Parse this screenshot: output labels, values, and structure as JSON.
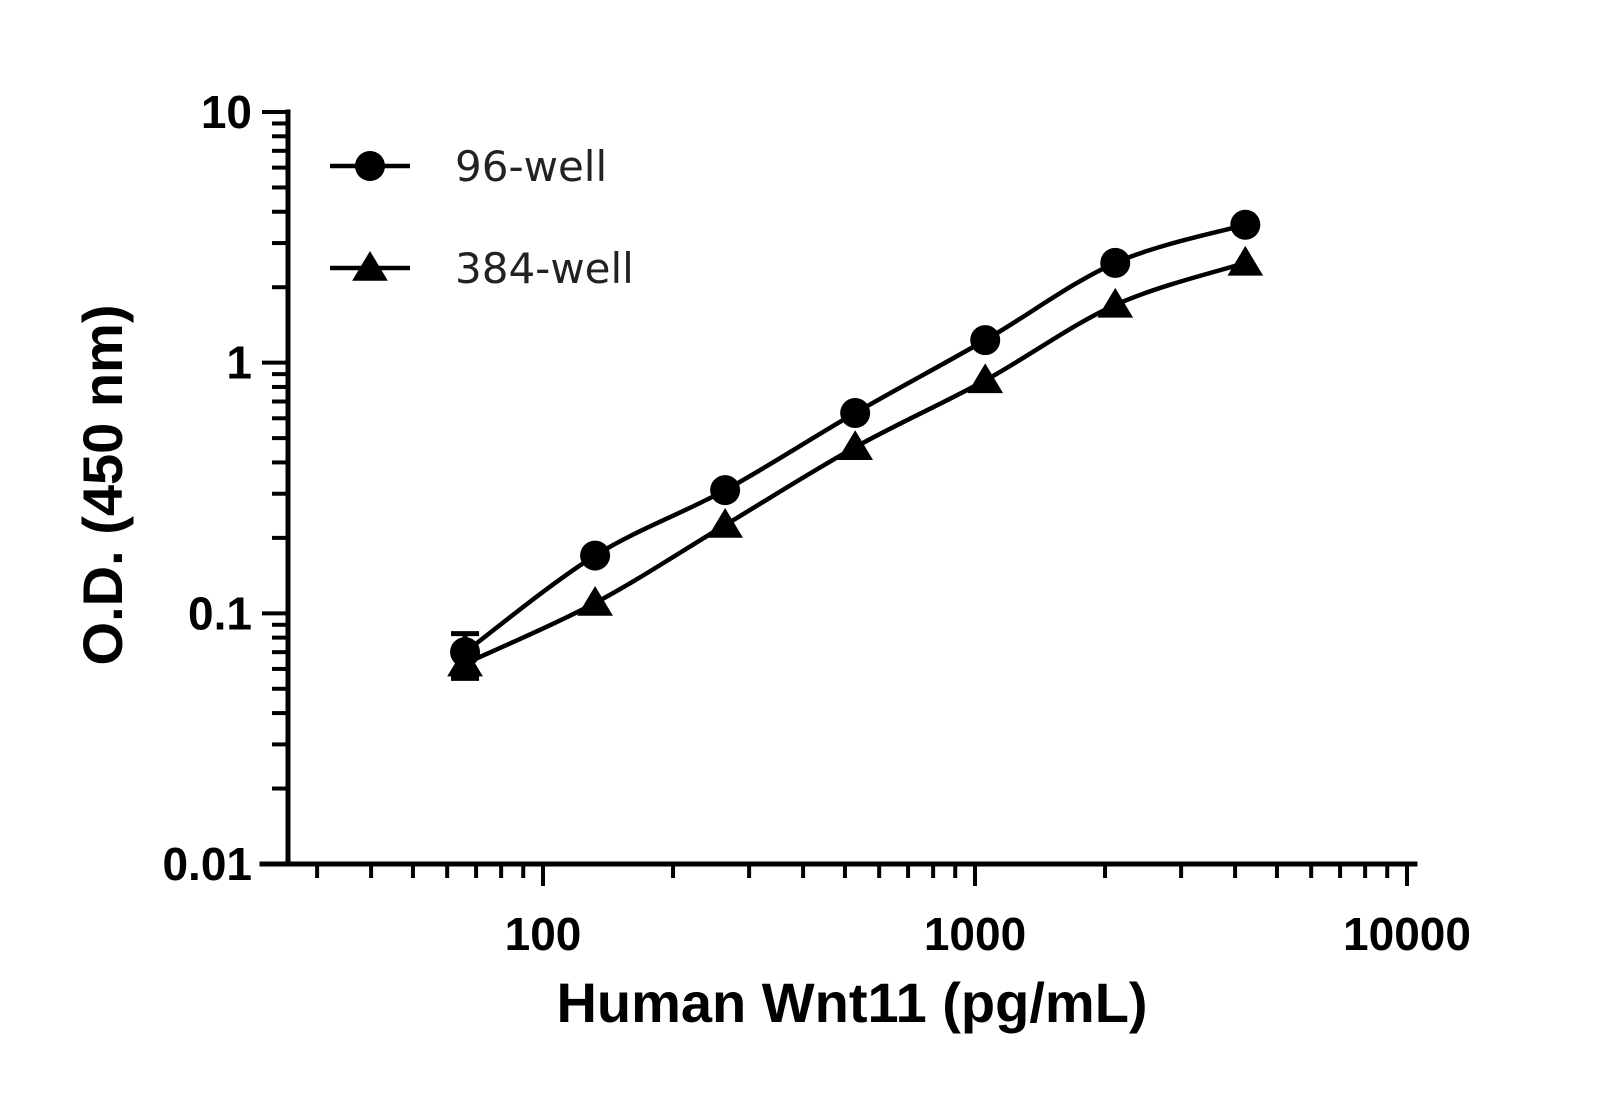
{
  "chart_data": {
    "type": "line",
    "title": "",
    "xlabel": "Human Wnt11 (pg/mL)",
    "ylabel": "O.D. (450 nm)",
    "x_scale": "log",
    "y_scale": "log",
    "xlim": [
      27,
      5200
    ],
    "ylim": [
      0.01,
      10
    ],
    "x_tick_labels": [
      {
        "value": 100,
        "label": "100"
      },
      {
        "value": 1000,
        "label": "1000"
      },
      {
        "value": 10000,
        "label": "10000"
      }
    ],
    "y_tick_labels": [
      {
        "value": 0.01,
        "label": "0.01"
      },
      {
        "value": 0.1,
        "label": "0.1"
      },
      {
        "value": 1,
        "label": "1"
      },
      {
        "value": 10,
        "label": "10"
      }
    ],
    "grid": false,
    "legend_position": "top-left",
    "series": [
      {
        "name": "96-well",
        "marker": "circle",
        "color": "#000000",
        "x": [
          66,
          132,
          264,
          528,
          1056,
          2112,
          4224
        ],
        "y": [
          0.07,
          0.17,
          0.31,
          0.63,
          1.23,
          2.5,
          3.55
        ],
        "y_error": [
          0.013,
          0,
          0,
          0,
          0,
          0,
          0
        ]
      },
      {
        "name": "384-well",
        "marker": "triangle",
        "color": "#000000",
        "x": [
          66,
          132,
          264,
          528,
          1056,
          2112,
          4224
        ],
        "y": [
          0.063,
          0.11,
          0.225,
          0.46,
          0.85,
          1.7,
          2.5
        ],
        "y_error": [
          0.008,
          0,
          0,
          0,
          0,
          0,
          0
        ]
      }
    ]
  }
}
